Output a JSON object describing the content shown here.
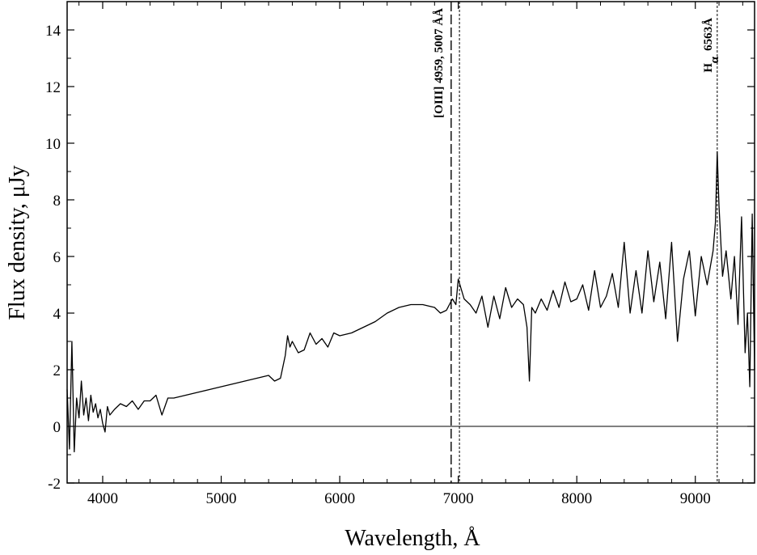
{
  "chart_data": {
    "type": "line",
    "title": "",
    "xlabel": "Wavelength, Å",
    "ylabel": "Flux density, μJy",
    "xlim": [
      3700,
      9500
    ],
    "ylim": [
      -2,
      15
    ],
    "x_ticks": [
      4000,
      5000,
      6000,
      7000,
      8000,
      9000
    ],
    "x_tick_labels": [
      "4000",
      "5000",
      "6000",
      "7000",
      "8000",
      "9000"
    ],
    "y_ticks": [
      -2,
      0,
      2,
      4,
      6,
      8,
      10,
      12,
      14
    ],
    "y_tick_labels": [
      "-2",
      "0",
      "2",
      "4",
      "6",
      "8",
      "10",
      "12",
      "14"
    ],
    "grid": false,
    "legend": "none",
    "zero_line": 0,
    "series": [
      {
        "x": [
          3700,
          3720,
          3740,
          3760,
          3780,
          3800,
          3820,
          3840,
          3860,
          3880,
          3900,
          3920,
          3940,
          3960,
          3980,
          4000,
          4020,
          4040,
          4060,
          4080,
          4100,
          4150,
          4200,
          4250,
          4300,
          4350,
          4400,
          4450,
          4500,
          4550,
          4600,
          4700,
          4800,
          4900,
          5000,
          5100,
          5200,
          5300,
          5400,
          5450,
          5500,
          5540,
          5560,
          5580,
          5600,
          5650,
          5700,
          5750,
          5800,
          5850,
          5900,
          5950,
          6000,
          6100,
          6200,
          6300,
          6400,
          6500,
          6600,
          6700,
          6800,
          6850,
          6900,
          6950,
          6980,
          7000,
          7050,
          7100,
          7150,
          7200,
          7250,
          7300,
          7350,
          7400,
          7450,
          7500,
          7550,
          7580,
          7600,
          7620,
          7650,
          7700,
          7750,
          7800,
          7850,
          7900,
          7950,
          8000,
          8050,
          8100,
          8150,
          8200,
          8250,
          8300,
          8350,
          8400,
          8450,
          8500,
          8550,
          8600,
          8650,
          8700,
          8750,
          8800,
          8850,
          8900,
          8950,
          9000,
          9050,
          9100,
          9150,
          9170,
          9185,
          9200,
          9230,
          9260,
          9300,
          9330,
          9360,
          9390,
          9420,
          9440,
          9460,
          9480,
          9500
        ],
        "y": [
          1.3,
          -0.8,
          3.0,
          -0.9,
          1.0,
          0.3,
          1.6,
          0.4,
          1.0,
          0.2,
          1.1,
          0.5,
          0.8,
          0.3,
          0.6,
          0.1,
          -0.2,
          0.7,
          0.4,
          0.5,
          0.6,
          0.8,
          0.7,
          0.9,
          0.6,
          0.9,
          0.9,
          1.1,
          0.4,
          1.0,
          1.0,
          1.1,
          1.2,
          1.3,
          1.4,
          1.5,
          1.6,
          1.7,
          1.8,
          1.6,
          1.7,
          2.5,
          3.2,
          2.8,
          3.0,
          2.6,
          2.7,
          3.3,
          2.9,
          3.1,
          2.8,
          3.3,
          3.2,
          3.3,
          3.5,
          3.7,
          4.0,
          4.2,
          4.3,
          4.3,
          4.2,
          4.0,
          4.1,
          4.5,
          4.3,
          5.2,
          4.5,
          4.3,
          4.0,
          4.6,
          3.5,
          4.6,
          3.8,
          4.9,
          4.2,
          4.5,
          4.3,
          3.5,
          1.6,
          4.2,
          4.0,
          4.5,
          4.1,
          4.8,
          4.2,
          5.1,
          4.4,
          4.5,
          5.0,
          4.1,
          5.5,
          4.2,
          4.6,
          5.4,
          4.2,
          6.5,
          4.0,
          5.5,
          4.0,
          6.2,
          4.4,
          5.8,
          3.8,
          6.5,
          3.0,
          5.2,
          6.2,
          3.9,
          6.0,
          5.0,
          6.2,
          7.2,
          9.7,
          7.8,
          5.3,
          6.2,
          4.5,
          6.0,
          3.6,
          7.4,
          2.6,
          4.0,
          1.4,
          7.5,
          2.0
        ]
      }
    ],
    "annotations": [
      {
        "x": 6940,
        "style": "dashed"
      },
      {
        "x": 7010,
        "style": "dotted"
      },
      {
        "x": 9185,
        "style": "dotted"
      }
    ]
  },
  "annotation_labels": {
    "oiii": "[OIII] 4959, 5007 ÅÅ",
    "halpha_main": "H",
    "halpha_sub": "α",
    "halpha_wl": "6563Å"
  }
}
